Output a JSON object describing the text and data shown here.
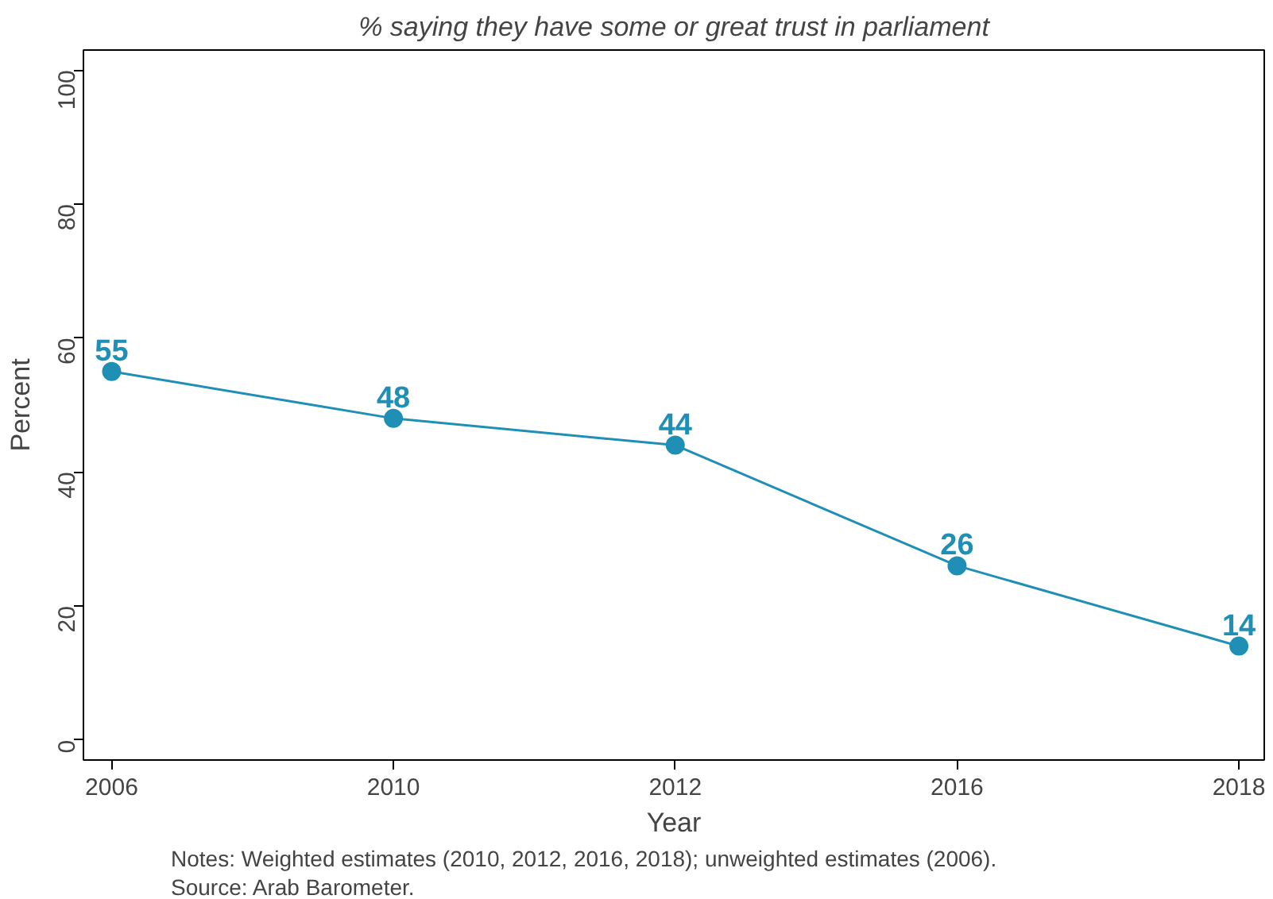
{
  "chart_data": {
    "type": "line",
    "title": "% saying they have some or great trust in parliament",
    "xlabel": "Year",
    "ylabel": "Percent",
    "categories": [
      "2006",
      "2010",
      "2012",
      "2016",
      "2018"
    ],
    "series": [
      {
        "color": "#1f8fb5",
        "values": [
          55,
          48,
          44,
          26,
          14
        ]
      }
    ],
    "ylim": [
      -3,
      103
    ],
    "yticks": [
      0,
      20,
      40,
      60,
      80,
      100
    ],
    "grid": false,
    "marker": "circle",
    "line_style": "solid",
    "data_labels": true,
    "annotations": [
      "Notes: Weighted estimates (2010, 2012, 2016, 2018); unweighted estimates (2006).",
      "Source: Arab Barometer."
    ]
  }
}
